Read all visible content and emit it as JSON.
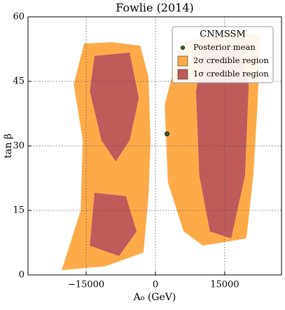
{
  "chart_data": {
    "type": "contour",
    "title": "Fowlie (2014)",
    "xlabel": "A₀ (GeV)",
    "ylabel": "tan β",
    "xlim": [
      -27600,
      27300
    ],
    "ylim": [
      0,
      60
    ],
    "xticks": [
      {
        "value": -15000,
        "label": "−15000"
      },
      0,
      15000
    ],
    "yticks": [
      0,
      15,
      30,
      45,
      60
    ],
    "grid": true,
    "legend_title": "CNMSSM",
    "legend_position": "upper right",
    "series": [
      {
        "name": "Posterior mean",
        "color": "#2f6b3a",
        "x": [
          2500
        ],
        "y": [
          32.8
        ]
      },
      {
        "name": "2σ credible region",
        "color": "#fdab4a",
        "polygons": [
          {
            "x": [
              -15450,
              -9400,
              -3300,
              -1500,
              -1060,
              -1500,
              -2600,
              -10900,
              -20300,
              -16200,
              -15750,
              -17700
            ],
            "y": [
              53.8,
              54.1,
              53.3,
              46,
              31.3,
              18.3,
              5.2,
              2,
              1.1,
              15,
              31.3,
              44.3
            ]
          },
          {
            "x": [
              5450,
              16400,
              22700,
              22100,
              21200,
              19700,
              10300,
              6100,
              2700,
              2000
            ],
            "y": [
              54.1,
              56.6,
              55.8,
              39.5,
              23.2,
              8.5,
              6.8,
              10.1,
              21.5,
              39.5
            ]
          }
        ]
      },
      {
        "name": "1σ credible region",
        "color": "#bf5b5b",
        "polygons": [
          {
            "x": [
              -13200,
              -5600,
              -3600,
              -5600,
              -8600,
              -11700,
              -14200
            ],
            "y": [
              50.9,
              51.7,
              41.1,
              31.3,
              26.4,
              31.3,
              42.7
            ]
          },
          {
            "x": [
              -13200,
              -6400,
              -4100,
              -7900,
              -14200
            ],
            "y": [
              19.1,
              18.3,
              10.1,
              4.4,
              6.8
            ]
          },
          {
            "x": [
              10300,
              17900,
              20200,
              19400,
              16400,
              11800,
              9500,
              8800
            ],
            "y": [
              51.7,
              53.3,
              44.3,
              23.2,
              8.5,
              10.1,
              23.2,
              42.7
            ]
          }
        ]
      }
    ]
  }
}
